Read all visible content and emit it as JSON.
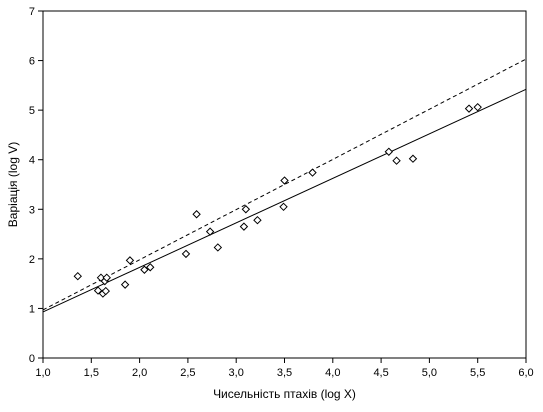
{
  "chart_data": {
    "type": "scatter",
    "title": "",
    "xlabel": "Чисельність птахів (log X)",
    "ylabel": "Варіація (log V)",
    "xlim": [
      1.0,
      6.0
    ],
    "ylim": [
      0,
      7
    ],
    "x_ticks": [
      1.0,
      1.5,
      2.0,
      2.5,
      3.0,
      3.5,
      4.0,
      4.5,
      5.0,
      5.5,
      6.0
    ],
    "x_tick_labels": [
      "1,0",
      "1,5",
      "2,0",
      "2,5",
      "3,0",
      "3,5",
      "4,0",
      "4,5",
      "5,0",
      "5,5",
      "6,0"
    ],
    "y_ticks": [
      0,
      1,
      2,
      3,
      4,
      5,
      6,
      7
    ],
    "y_tick_labels": [
      "0",
      "1",
      "2",
      "3",
      "4",
      "5",
      "6",
      "7"
    ],
    "grid": false,
    "legend": "none",
    "marker": "diamond-open",
    "points": [
      {
        "x": 1.36,
        "y": 1.65
      },
      {
        "x": 1.57,
        "y": 1.36
      },
      {
        "x": 1.6,
        "y": 1.62
      },
      {
        "x": 1.62,
        "y": 1.3
      },
      {
        "x": 1.64,
        "y": 1.55
      },
      {
        "x": 1.65,
        "y": 1.35
      },
      {
        "x": 1.66,
        "y": 1.62
      },
      {
        "x": 1.85,
        "y": 1.48
      },
      {
        "x": 1.9,
        "y": 1.97
      },
      {
        "x": 2.05,
        "y": 1.78
      },
      {
        "x": 2.11,
        "y": 1.83
      },
      {
        "x": 2.48,
        "y": 2.1
      },
      {
        "x": 2.59,
        "y": 2.9
      },
      {
        "x": 2.73,
        "y": 2.55
      },
      {
        "x": 2.81,
        "y": 2.23
      },
      {
        "x": 3.08,
        "y": 2.65
      },
      {
        "x": 3.1,
        "y": 3.0
      },
      {
        "x": 3.22,
        "y": 2.78
      },
      {
        "x": 3.49,
        "y": 3.05
      },
      {
        "x": 3.5,
        "y": 3.58
      },
      {
        "x": 3.79,
        "y": 3.74
      },
      {
        "x": 4.58,
        "y": 4.16
      },
      {
        "x": 4.66,
        "y": 3.98
      },
      {
        "x": 4.83,
        "y": 4.02
      },
      {
        "x": 5.41,
        "y": 5.03
      },
      {
        "x": 5.5,
        "y": 5.06
      }
    ],
    "lines": [
      {
        "style": "solid",
        "x": [
          1.0,
          6.0
        ],
        "y": [
          0.93,
          5.42
        ]
      },
      {
        "style": "dashed",
        "x": [
          1.0,
          6.0
        ],
        "y": [
          0.97,
          6.03
        ]
      }
    ]
  },
  "colors": {
    "axis": "#000000",
    "marker": "#000000",
    "line": "#000000",
    "background": "#ffffff"
  }
}
